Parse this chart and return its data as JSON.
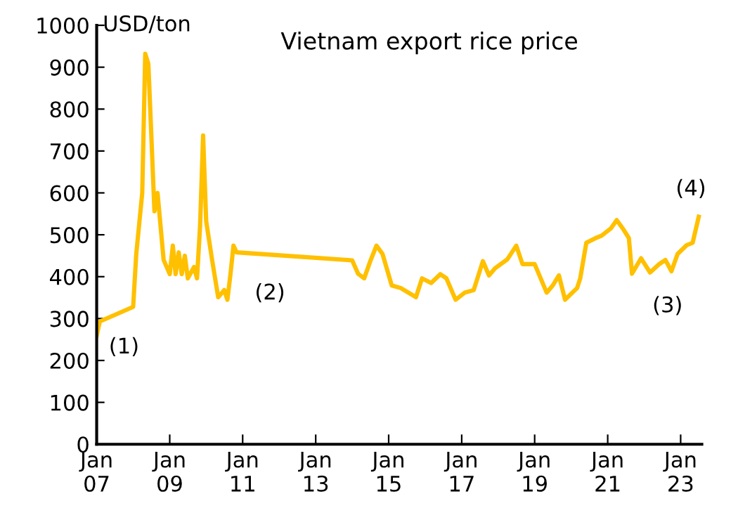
{
  "chart_data": {
    "type": "line",
    "title": "Vietnam export rice price",
    "ylabel": "USD/ton",
    "series": [
      {
        "color": "#ffc000",
        "x": [
          "2007-01",
          "2007-02",
          "2008-01",
          "2008-02",
          "2008-04",
          "2008-05",
          "2008-06",
          "2008-07",
          "2008-08",
          "2008-09",
          "2008-11",
          "2009-01",
          "2009-02",
          "2009-03",
          "2009-04",
          "2009-05",
          "2009-06",
          "2009-07",
          "2009-09",
          "2009-10",
          "2009-11",
          "2009-12",
          "2010-01",
          "2010-03",
          "2010-05",
          "2010-07",
          "2010-08",
          "2010-09",
          "2010-10",
          "2010-11",
          "2014-01",
          "2014-03",
          "2014-05",
          "2014-07",
          "2014-09",
          "2014-11",
          "2015-02",
          "2015-05",
          "2015-10",
          "2015-12",
          "2016-03",
          "2016-06",
          "2016-08",
          "2016-10",
          "2016-11",
          "2017-02",
          "2017-05",
          "2017-08",
          "2017-10",
          "2017-12",
          "2018-04",
          "2018-07",
          "2018-09",
          "2019-01",
          "2019-05",
          "2019-07",
          "2019-09",
          "2019-11",
          "2020-03",
          "2020-04",
          "2020-06",
          "2020-09",
          "2020-11",
          "2021-02",
          "2021-04",
          "2021-06",
          "2021-08",
          "2021-09",
          "2021-12",
          "2022-03",
          "2022-06",
          "2022-08",
          "2022-10",
          "2022-12",
          "2023-03",
          "2023-05",
          "2023-07"
        ],
        "values": [
          259,
          293,
          328,
          454,
          600,
          932,
          908,
          737,
          556,
          600,
          440,
          406,
          474,
          406,
          458,
          406,
          450,
          396,
          423,
          396,
          522,
          737,
          532,
          440,
          351,
          368,
          345,
          406,
          474,
          458,
          439,
          407,
          396,
          437,
          474,
          454,
          379,
          373,
          351,
          396,
          385,
          406,
          396,
          362,
          345,
          362,
          368,
          437,
          403,
          420,
          441,
          474,
          430,
          430,
          362,
          379,
          403,
          345,
          373,
          396,
          481,
          492,
          498,
          515,
          535,
          515,
          492,
          407,
          444,
          410,
          430,
          440,
          413,
          454,
          475,
          481,
          543
        ]
      }
    ],
    "xlim": [
      "2007-01-01",
      "2023-08-01"
    ],
    "xticks": [
      {
        "value": "2007-01",
        "label": "Jan\n07"
      },
      {
        "value": "2009-01",
        "label": "Jan\n09"
      },
      {
        "value": "2011-01",
        "label": "Jan\n11"
      },
      {
        "value": "2013-01",
        "label": "Jan\n13"
      },
      {
        "value": "2015-01",
        "label": "Jan\n15"
      },
      {
        "value": "2017-01",
        "label": "Jan\n17"
      },
      {
        "value": "2019-01",
        "label": "Jan\n19"
      },
      {
        "value": "2021-01",
        "label": "Jan\n21"
      },
      {
        "value": "2023-01",
        "label": "Jan\n23"
      }
    ],
    "ylim": [
      0,
      1000
    ],
    "yticks": [
      0,
      100,
      200,
      300,
      400,
      500,
      600,
      700,
      800,
      900,
      1000
    ],
    "grid": false,
    "marker": "none",
    "line_style": "solid",
    "annotations": [
      {
        "text": "(1)",
        "x": "2007-01",
        "y": 259
      },
      {
        "text": "(2)",
        "x": "2011-10",
        "y": 453
      },
      {
        "text": "(3)",
        "x": "2022-10",
        "y": 413
      },
      {
        "text": "(4)",
        "x": "2023-07",
        "y": 543
      }
    ]
  }
}
